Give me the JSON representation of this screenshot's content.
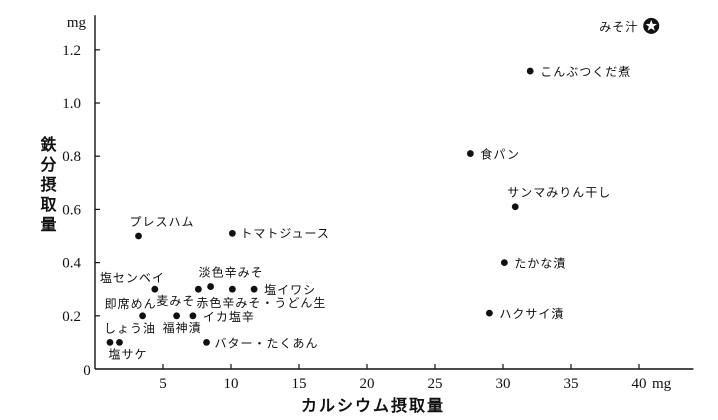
{
  "chart_data": {
    "type": "scatter",
    "xlabel": "カルシウム摂取量",
    "ylabel": "鉄分摂取量",
    "x_unit": "mg",
    "y_unit": "mg",
    "origin_label": "0",
    "xlim": [
      0,
      44
    ],
    "ylim": [
      0,
      1.33
    ],
    "x_tick_labels": [
      "5",
      "10",
      "15",
      "20",
      "25",
      "30",
      "35",
      "40"
    ],
    "y_tick_labels": [
      "0.2",
      "0.4",
      "0.6",
      "0.8",
      "1.0",
      "1.2"
    ],
    "grid": false,
    "points": [
      {
        "label": "みそ汁",
        "x": 40.9,
        "y": 1.29,
        "marker": "star"
      },
      {
        "label": "こんぶつくだ煮",
        "x": 32.0,
        "y": 1.12,
        "marker": "dot"
      },
      {
        "label": "食パン",
        "x": 27.6,
        "y": 0.81,
        "marker": "dot"
      },
      {
        "label": "サンマみりん干し",
        "x": 30.9,
        "y": 0.61,
        "marker": "dot"
      },
      {
        "label": "たかな漬",
        "x": 30.1,
        "y": 0.4,
        "marker": "dot"
      },
      {
        "label": "ハクサイ漬",
        "x": 29.0,
        "y": 0.21,
        "marker": "dot"
      },
      {
        "label": "プレスハム",
        "x": 3.2,
        "y": 0.5,
        "marker": "dot"
      },
      {
        "label": "トマトジュース",
        "x": 10.1,
        "y": 0.51,
        "marker": "dot"
      },
      {
        "label": "塩センベイ",
        "x": 4.4,
        "y": 0.3,
        "marker": "dot"
      },
      {
        "label": "麦みそ",
        "x": 7.6,
        "y": 0.3,
        "marker": "dot"
      },
      {
        "label": "淡色辛みそ",
        "x": 8.5,
        "y": 0.31,
        "marker": "dot"
      },
      {
        "label": "赤色辛みそ・うどん生",
        "x": 10.1,
        "y": 0.3,
        "marker": "dot"
      },
      {
        "label": "塩イワシ",
        "x": 11.7,
        "y": 0.3,
        "marker": "dot"
      },
      {
        "label": "即席めん",
        "x": 3.5,
        "y": 0.2,
        "marker": "dot"
      },
      {
        "label": "福神漬",
        "x": 6.0,
        "y": 0.2,
        "marker": "dot"
      },
      {
        "label": "イカ塩辛",
        "x": 7.2,
        "y": 0.2,
        "marker": "dot"
      },
      {
        "label": "しょう油",
        "x": 1.1,
        "y": 0.1,
        "marker": "dot"
      },
      {
        "label": "塩サケ",
        "x": 1.8,
        "y": 0.1,
        "marker": "dot"
      },
      {
        "label": "バター・たくあん",
        "x": 8.2,
        "y": 0.1,
        "marker": "dot"
      }
    ]
  }
}
